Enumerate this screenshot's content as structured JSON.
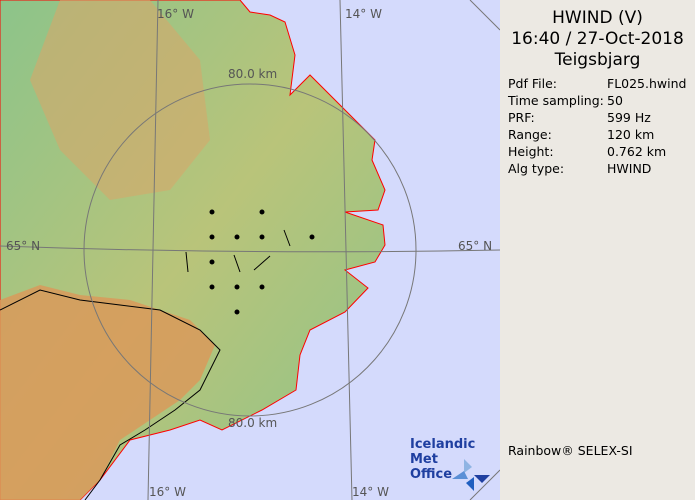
{
  "map": {
    "grid_labels": {
      "top_left": "16° W",
      "top_right": "14° W",
      "left": "65° N",
      "right": "65° N",
      "bottom_left": "16° W",
      "bottom_right": "14° W"
    },
    "range_labels": {
      "top": "80.0 km",
      "bottom": "80.0 km"
    },
    "colors": {
      "sea": "#d4dafc",
      "coast": "#ff0000",
      "lowland": "#7fbf7f",
      "highland": "#d99a5a"
    }
  },
  "logo": {
    "line1": "Icelandic Met",
    "line2": "Office"
  },
  "panel": {
    "product": "HWIND (V)",
    "datetime": "16:40 / 27-Oct-2018",
    "site": "Teigsbjarg",
    "fields": [
      {
        "key": "Pdf File:",
        "value": "FL025.hwind"
      },
      {
        "key": "Time sampling:",
        "value": "50"
      },
      {
        "key": "PRF:",
        "value": "599 Hz"
      },
      {
        "key": "Range:",
        "value": "120 km"
      },
      {
        "key": "Height:",
        "value": "0.762 km"
      },
      {
        "key": "Alg type:",
        "value": "HWIND"
      }
    ],
    "footer": "Rainbow® SELEX-SI"
  }
}
